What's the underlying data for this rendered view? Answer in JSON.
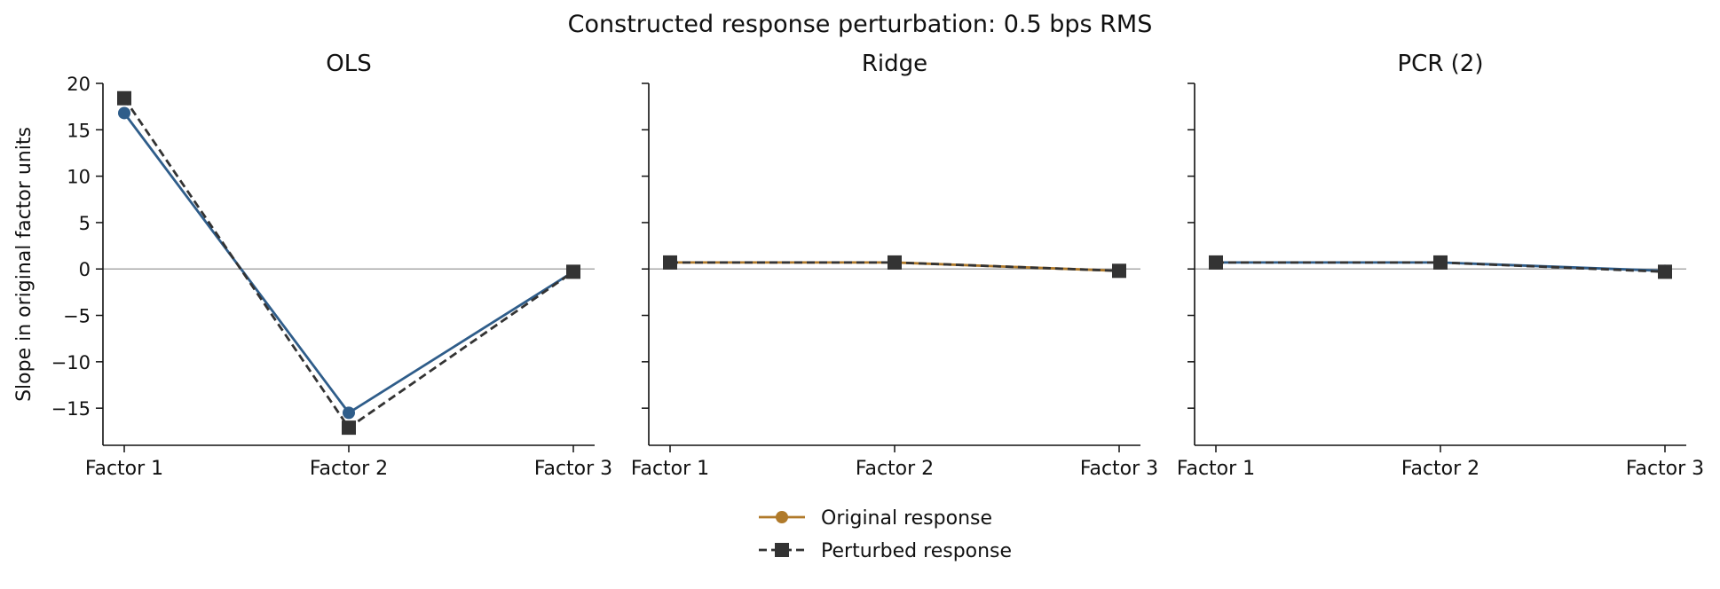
{
  "figure": {
    "suptitle": "Constructed response perturbation: 0.5 bps RMS"
  },
  "shared_y_label": "Slope in original factor units",
  "legend": {
    "placement": "bottom-center",
    "entries": [
      {
        "label": "Original response",
        "marker": "circle",
        "line": "solid"
      },
      {
        "label": "Perturbed response",
        "marker": "square",
        "line": "dashed"
      }
    ]
  },
  "colors": {
    "ols_original": "#2f5d8a",
    "original_legend": "#b07a2a",
    "perturbed": "#333333",
    "zero_line": "#aaaaaa",
    "axis": "#111111"
  },
  "chart_data": [
    {
      "type": "line",
      "title": "OLS",
      "categories": [
        "Factor 1",
        "Factor 2",
        "Factor 3"
      ],
      "ylabel": "Slope in original factor units",
      "ylim": [
        -19,
        20
      ],
      "yticks": [
        -15,
        -10,
        -5,
        0,
        5,
        10,
        15,
        20
      ],
      "grid": false,
      "series": [
        {
          "name": "Original response",
          "values": [
            16.8,
            -15.5,
            -0.3
          ],
          "color": "#2f5d8a",
          "marker": "circle",
          "dash": "solid"
        },
        {
          "name": "Perturbed response",
          "values": [
            18.4,
            -17.1,
            -0.3
          ],
          "color": "#333333",
          "marker": "square",
          "dash": "dashed"
        }
      ]
    },
    {
      "type": "line",
      "title": "Ridge",
      "categories": [
        "Factor 1",
        "Factor 2",
        "Factor 3"
      ],
      "ylim": [
        -19,
        20
      ],
      "grid": false,
      "series": [
        {
          "name": "Original response",
          "values": [
            0.7,
            0.7,
            -0.2
          ],
          "color": "#b07a2a",
          "marker": "circle",
          "dash": "solid"
        },
        {
          "name": "Perturbed response",
          "values": [
            0.7,
            0.7,
            -0.2
          ],
          "color": "#333333",
          "marker": "square",
          "dash": "dashed"
        }
      ]
    },
    {
      "type": "line",
      "title": "PCR (2)",
      "categories": [
        "Factor 1",
        "Factor 2",
        "Factor 3"
      ],
      "ylim": [
        -19,
        20
      ],
      "grid": false,
      "series": [
        {
          "name": "Original response",
          "values": [
            0.7,
            0.7,
            -0.2
          ],
          "color": "#2f5d8a",
          "marker": "circle",
          "dash": "solid"
        },
        {
          "name": "Perturbed response",
          "values": [
            0.7,
            0.7,
            -0.3
          ],
          "color": "#333333",
          "marker": "square",
          "dash": "dashed"
        }
      ]
    }
  ]
}
